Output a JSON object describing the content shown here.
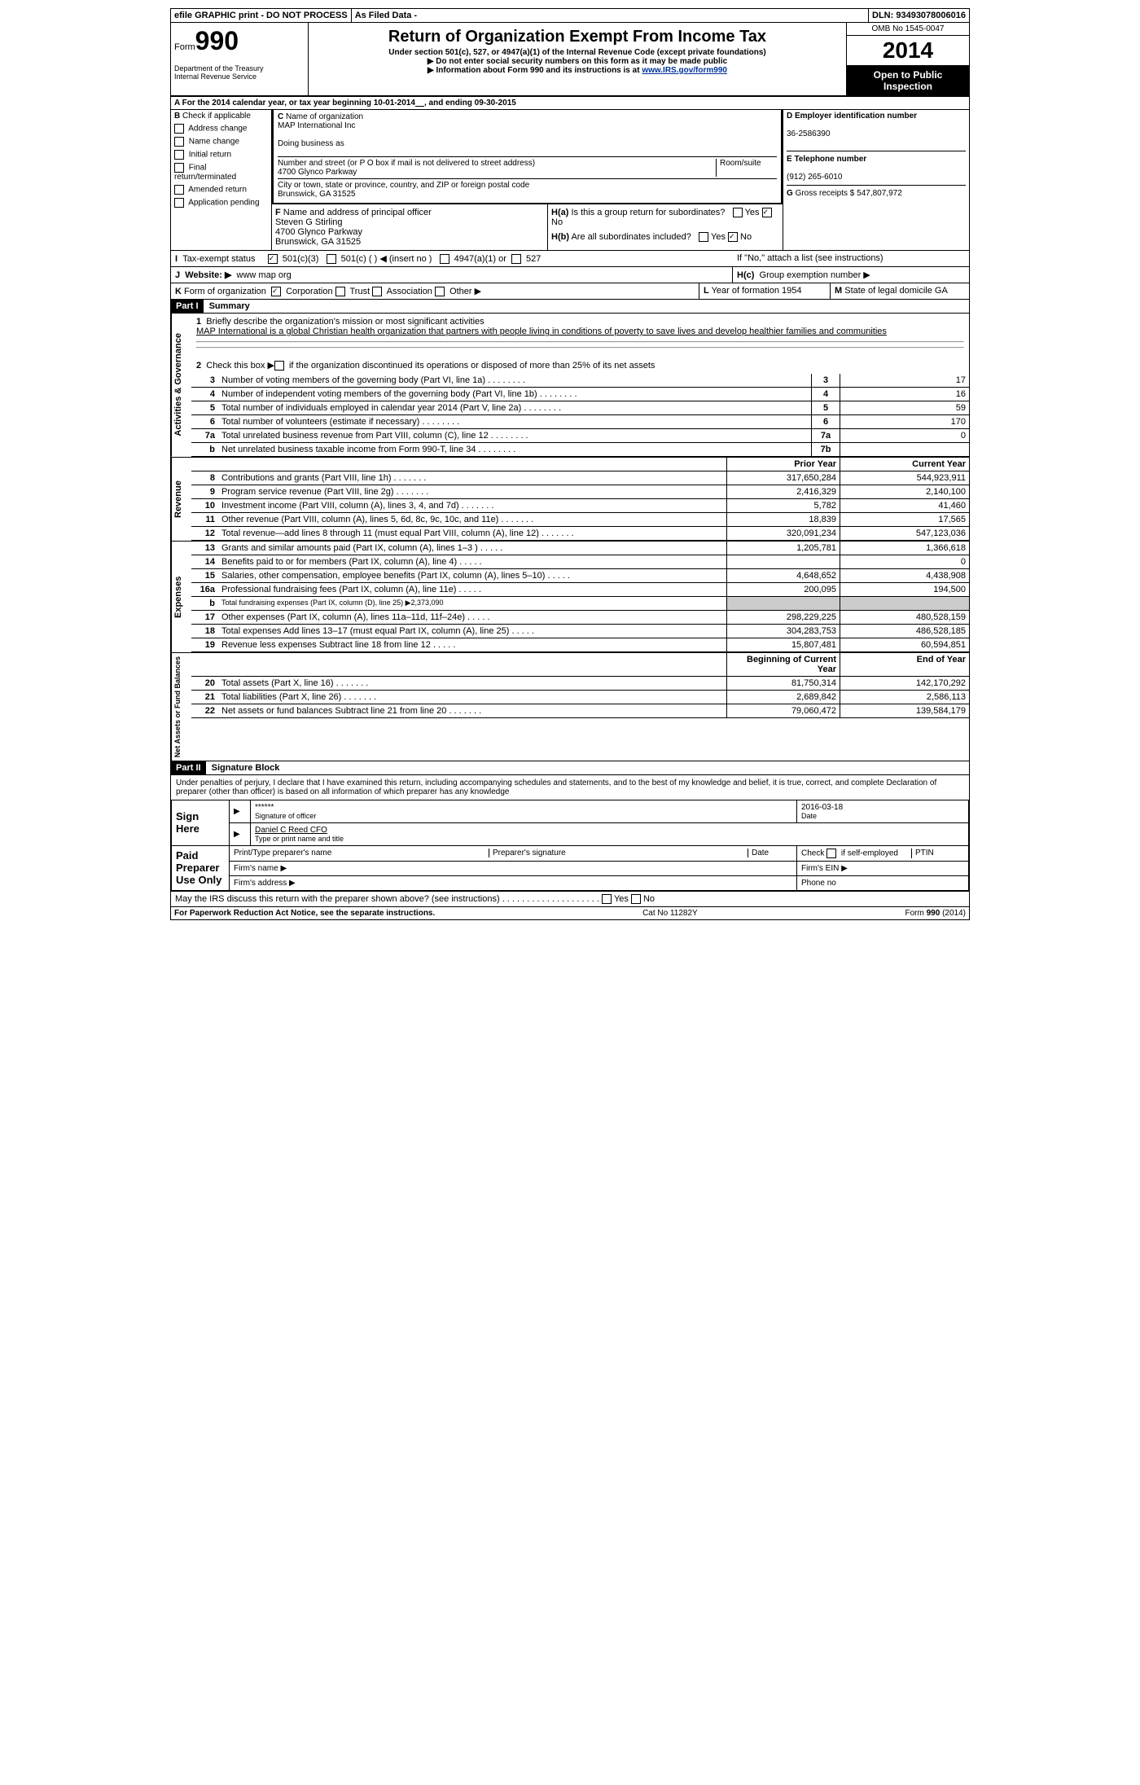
{
  "top_bar": {
    "efile": "efile GRAPHIC print - DO NOT PROCESS",
    "filed": "As Filed Data -",
    "dln_label": "DLN:",
    "dln": "93493078006016"
  },
  "header": {
    "form_label": "Form",
    "form_number": "990",
    "dept": "Department of the Treasury",
    "irs": "Internal Revenue Service",
    "title": "Return of Organization Exempt From Income Tax",
    "subtitle": "Under section 501(c), 527, or 4947(a)(1) of the Internal Revenue Code (except private foundations)",
    "note1": "▶ Do not enter social security numbers on this form as it may be made public",
    "note2": "▶ Information about Form 990 and its instructions is at ",
    "link": "www.IRS.gov/form990",
    "omb": "OMB No 1545-0047",
    "year": "2014",
    "open": "Open to Public Inspection"
  },
  "section_a": {
    "a_label": "A For the 2014 calendar year, or tax year beginning 10-01-2014",
    "a_end": ", and ending 09-30-2015",
    "b_label": "B",
    "b_check": "Check if applicable",
    "b_items": [
      "Address change",
      "Name change",
      "Initial return",
      "Final return/terminated",
      "Amended return",
      "Application pending"
    ],
    "c_label": "C",
    "c_name_label": "Name of organization",
    "c_name": "MAP International Inc",
    "dba_label": "Doing business as",
    "street_label": "Number and street (or P O box if mail is not delivered to street address)",
    "room_label": "Room/suite",
    "street": "4700 Glynco Parkway",
    "city_label": "City or town, state or province, country, and ZIP or foreign postal code",
    "city": "Brunswick, GA 31525",
    "f_label": "F",
    "f_name_label": "Name and address of principal officer",
    "f_name": "Steven G Stirling",
    "f_street": "4700 Glynco Parkway",
    "f_city": "Brunswick, GA 31525",
    "d_label": "D Employer identification number",
    "d_ein": "36-2586390",
    "e_label": "E Telephone number",
    "e_phone": "(912) 265-6010",
    "g_label": "G",
    "g_text": "Gross receipts $ 547,807,972",
    "ha_label": "H(a)",
    "ha_text": "Is this a group return for subordinates?",
    "hb_label": "H(b)",
    "hb_text": "Are all subordinates included?",
    "hb_note": "If \"No,\" attach a list (see instructions)",
    "hc_label": "H(c)",
    "hc_text": "Group exemption number ▶",
    "yes": "Yes",
    "no": "No"
  },
  "line_i": {
    "label": "I",
    "text": "Tax-exempt status",
    "opts": [
      "501(c)(3)",
      "501(c) (  ) ◀ (insert no )",
      "4947(a)(1) or",
      "527"
    ]
  },
  "line_j": {
    "label": "J",
    "text": "Website: ▶",
    "val": "www map org"
  },
  "line_k": {
    "label": "K",
    "text": "Form of organization",
    "opts": [
      "Corporation",
      "Trust",
      "Association",
      "Other ▶"
    ],
    "l_label": "L",
    "l_text": "Year of formation 1954",
    "m_label": "M",
    "m_text": "State of legal domicile GA"
  },
  "part1": {
    "label": "Part I",
    "title": "Summary",
    "governance_label": "Activities & Governance",
    "revenue_label": "Revenue",
    "expenses_label": "Expenses",
    "netassets_label": "Net Assets or Fund Balances",
    "line1": "Briefly describe the organization's mission or most significant activities",
    "line1_text": "MAP International is a global Christian health organization that partners with people living in conditions of poverty to save lives and develop healthier families and communities",
    "line2": "Check this box ▶",
    "line2_text": "if the organization discontinued its operations or disposed of more than 25% of its net assets",
    "lines_gov": [
      {
        "num": "3",
        "desc": "Number of voting members of the governing body (Part VI, line 1a)",
        "box": "3",
        "val": "17"
      },
      {
        "num": "4",
        "desc": "Number of independent voting members of the governing body (Part VI, line 1b)",
        "box": "4",
        "val": "16"
      },
      {
        "num": "5",
        "desc": "Total number of individuals employed in calendar year 2014 (Part V, line 2a)",
        "box": "5",
        "val": "59"
      },
      {
        "num": "6",
        "desc": "Total number of volunteers (estimate if necessary)",
        "box": "6",
        "val": "170"
      },
      {
        "num": "7a",
        "desc": "Total unrelated business revenue from Part VIII, column (C), line 12",
        "box": "7a",
        "val": "0"
      },
      {
        "num": "b",
        "desc": "Net unrelated business taxable income from Form 990-T, line 34",
        "box": "7b",
        "val": ""
      }
    ],
    "prior_year": "Prior Year",
    "current_year": "Current Year",
    "lines_rev": [
      {
        "num": "8",
        "desc": "Contributions and grants (Part VIII, line 1h)",
        "prior": "317,650,284",
        "curr": "544,923,911"
      },
      {
        "num": "9",
        "desc": "Program service revenue (Part VIII, line 2g)",
        "prior": "2,416,329",
        "curr": "2,140,100"
      },
      {
        "num": "10",
        "desc": "Investment income (Part VIII, column (A), lines 3, 4, and 7d)",
        "prior": "5,782",
        "curr": "41,460"
      },
      {
        "num": "11",
        "desc": "Other revenue (Part VIII, column (A), lines 5, 6d, 8c, 9c, 10c, and 11e)",
        "prior": "18,839",
        "curr": "17,565"
      },
      {
        "num": "12",
        "desc": "Total revenue—add lines 8 through 11 (must equal Part VIII, column (A), line 12)",
        "prior": "320,091,234",
        "curr": "547,123,036"
      }
    ],
    "lines_exp": [
      {
        "num": "13",
        "desc": "Grants and similar amounts paid (Part IX, column (A), lines 1–3 )",
        "prior": "1,205,781",
        "curr": "1,366,618"
      },
      {
        "num": "14",
        "desc": "Benefits paid to or for members (Part IX, column (A), line 4)",
        "prior": "",
        "curr": "0"
      },
      {
        "num": "15",
        "desc": "Salaries, other compensation, employee benefits (Part IX, column (A), lines 5–10)",
        "prior": "4,648,652",
        "curr": "4,438,908"
      },
      {
        "num": "16a",
        "desc": "Professional fundraising fees (Part IX, column (A), line 11e)",
        "prior": "200,095",
        "curr": "194,500"
      },
      {
        "num": "b",
        "desc": "Total fundraising expenses (Part IX, column (D), line 25) ▶2,373,090",
        "prior": "",
        "curr": ""
      },
      {
        "num": "17",
        "desc": "Other expenses (Part IX, column (A), lines 11a–11d, 11f–24e)",
        "prior": "298,229,225",
        "curr": "480,528,159"
      },
      {
        "num": "18",
        "desc": "Total expenses Add lines 13–17 (must equal Part IX, column (A), line 25)",
        "prior": "304,283,753",
        "curr": "486,528,185"
      },
      {
        "num": "19",
        "desc": "Revenue less expenses Subtract line 18 from line 12",
        "prior": "15,807,481",
        "curr": "60,594,851"
      }
    ],
    "begin_year": "Beginning of Current Year",
    "end_year": "End of Year",
    "lines_net": [
      {
        "num": "20",
        "desc": "Total assets (Part X, line 16)",
        "prior": "81,750,314",
        "curr": "142,170,292"
      },
      {
        "num": "21",
        "desc": "Total liabilities (Part X, line 26)",
        "prior": "2,689,842",
        "curr": "2,586,113"
      },
      {
        "num": "22",
        "desc": "Net assets or fund balances Subtract line 21 from line 20",
        "prior": "79,060,472",
        "curr": "139,584,179"
      }
    ]
  },
  "part2": {
    "label": "Part II",
    "title": "Signature Block",
    "perjury": "Under penalties of perjury, I declare that I have examined this return, including accompanying schedules and statements, and to the best of my knowledge and belief, it is true, correct, and complete Declaration of preparer (other than officer) is based on all information of which preparer has any knowledge",
    "sign_here": "Sign Here",
    "sig_stars": "******",
    "sig_officer": "Signature of officer",
    "sig_date": "2016-03-18",
    "date_label": "Date",
    "officer_name": "Daniel C Reed CFO",
    "type_name": "Type or print name and title",
    "paid_prep": "Paid Preparer Use Only",
    "prep_name_label": "Print/Type preparer's name",
    "prep_sig_label": "Preparer's signature",
    "check_self": "Check",
    "self_emp": "if self-employed",
    "ptin": "PTIN",
    "firm_name": "Firm's name ▶",
    "firm_ein": "Firm's EIN ▶",
    "firm_addr": "Firm's address ▶",
    "phone": "Phone no",
    "discuss": "May the IRS discuss this return with the preparer shown above? (see instructions)"
  },
  "footer": {
    "paperwork": "For Paperwork Reduction Act Notice, see the separate instructions.",
    "cat": "Cat No 11282Y",
    "form": "Form 990 (2014)"
  }
}
